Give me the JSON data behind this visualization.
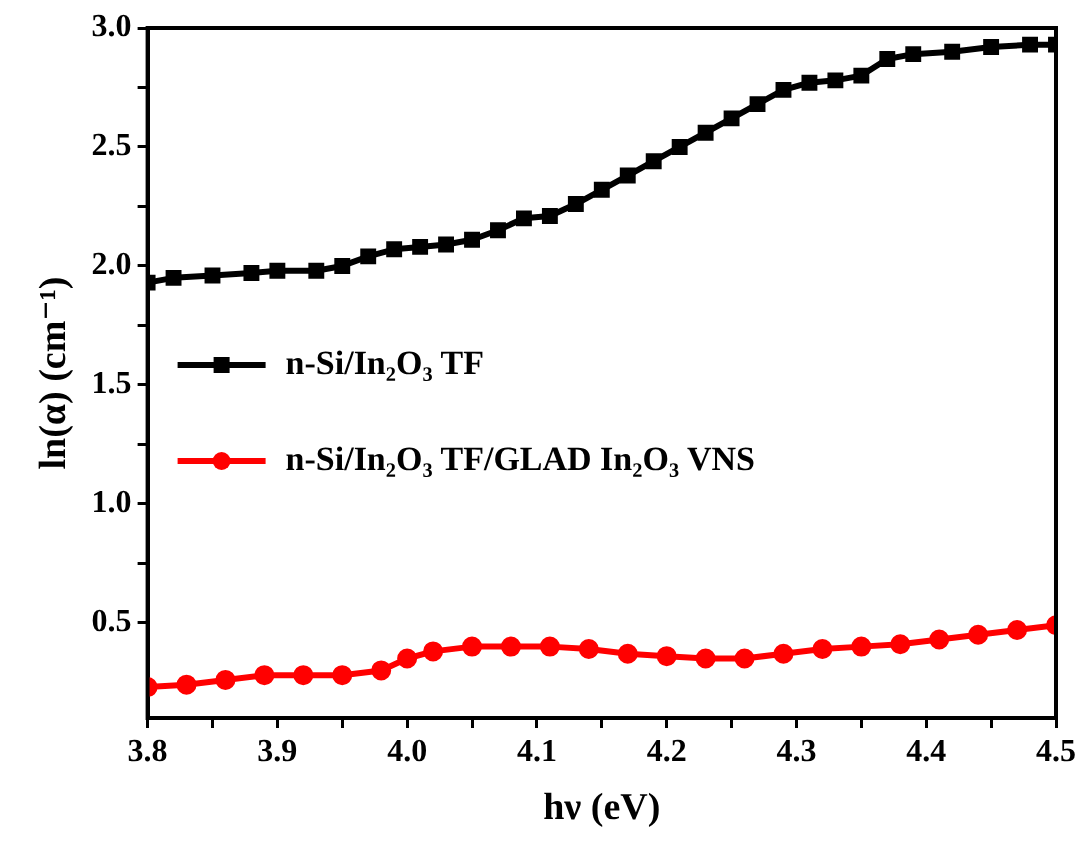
{
  "chart_data": {
    "type": "line",
    "xlabel": "hν (eV)",
    "ylabel": "ln(α) (cm⁻¹)",
    "xlim": [
      3.8,
      4.5
    ],
    "ylim": [
      0.1,
      3.0
    ],
    "xticks": [
      3.8,
      {
        "value": 3.85,
        "label": null
      },
      3.9,
      {
        "value": 3.95,
        "label": null
      },
      {
        "value": 4.0,
        "label": "4.0"
      },
      {
        "value": 4.05,
        "label": null
      },
      4.1,
      {
        "value": 4.15,
        "label": null
      },
      4.2,
      {
        "value": 4.25,
        "label": null
      },
      4.3,
      {
        "value": 4.35,
        "label": null
      },
      4.4,
      {
        "value": 4.45,
        "label": null
      },
      4.5
    ],
    "yticks": [
      0.5,
      {
        "value": 0.75,
        "label": null
      },
      {
        "value": 1.0,
        "label": "1.0"
      },
      {
        "value": 1.25,
        "label": null
      },
      1.5,
      {
        "value": 1.75,
        "label": null
      },
      {
        "value": 2.0,
        "label": "2.0"
      },
      {
        "value": 2.25,
        "label": null
      },
      2.5,
      {
        "value": 2.75,
        "label": null
      },
      {
        "value": 3.0,
        "label": "3.0"
      }
    ],
    "grid": false,
    "legend": "left",
    "line_style": "solid",
    "series": [
      {
        "name": "n-Si/In₂O₃ TF",
        "color": "#000000",
        "marker": "square",
        "x": [
          3.8,
          3.82,
          3.85,
          3.88,
          3.9,
          3.93,
          3.95,
          3.97,
          3.99,
          4.01,
          4.03,
          4.05,
          4.07,
          4.09,
          4.11,
          4.13,
          4.15,
          4.17,
          4.19,
          4.21,
          4.23,
          4.25,
          4.27,
          4.29,
          4.31,
          4.33,
          4.35,
          4.37,
          4.39,
          4.42,
          4.45,
          4.48,
          4.5
        ],
        "values": [
          1.93,
          1.95,
          1.96,
          1.97,
          1.98,
          1.98,
          2.0,
          2.04,
          2.07,
          2.08,
          2.09,
          2.11,
          2.15,
          2.2,
          2.21,
          2.26,
          2.32,
          2.38,
          2.44,
          2.5,
          2.56,
          2.62,
          2.68,
          2.74,
          2.77,
          2.78,
          2.8,
          2.87,
          2.89,
          2.9,
          2.92,
          2.93,
          2.93
        ]
      },
      {
        "name": "n-Si/In₂O₃ TF/GLAD In₂O₃ VNS",
        "color": "#ff0000",
        "marker": "circle",
        "x": [
          3.8,
          3.83,
          3.86,
          3.89,
          3.92,
          3.95,
          3.98,
          4.0,
          4.02,
          4.05,
          4.08,
          4.11,
          4.14,
          4.17,
          4.2,
          4.23,
          4.26,
          4.29,
          4.32,
          4.35,
          4.38,
          4.41,
          4.44,
          4.47,
          4.5
        ],
        "values": [
          0.23,
          0.24,
          0.26,
          0.28,
          0.28,
          0.28,
          0.3,
          0.35,
          0.38,
          0.4,
          0.4,
          0.4,
          0.39,
          0.37,
          0.36,
          0.35,
          0.35,
          0.37,
          0.39,
          0.4,
          0.41,
          0.43,
          0.45,
          0.47,
          0.49
        ]
      }
    ]
  }
}
